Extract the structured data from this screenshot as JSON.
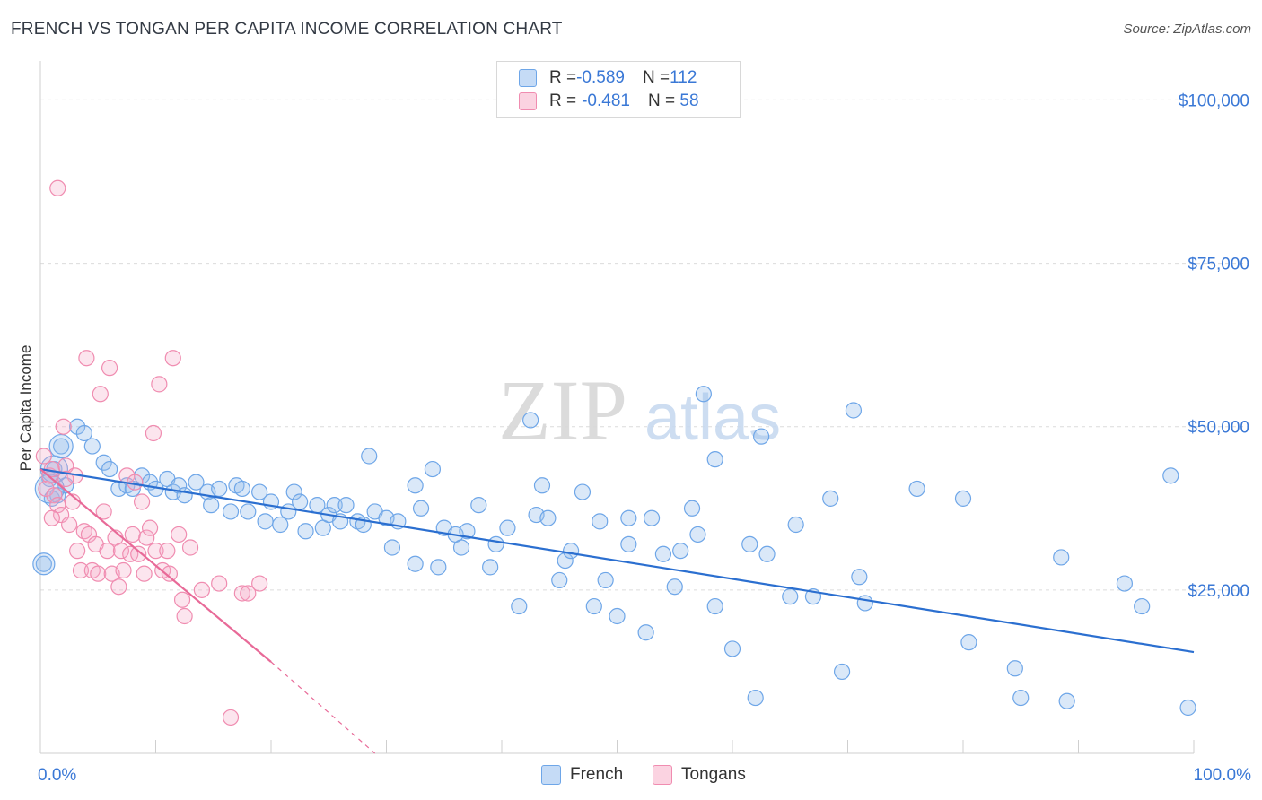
{
  "header": {
    "title": "FRENCH VS TONGAN PER CAPITA INCOME CORRELATION CHART",
    "source": "Source: ZipAtlas.com"
  },
  "watermark": {
    "zip": "ZIP",
    "atlas": "atlas"
  },
  "stats_legend": [
    {
      "r_label": "R = ",
      "r_value": "-0.589",
      "n_label": "N = ",
      "n_value": "112",
      "color": "#6ea6e8"
    },
    {
      "r_label": "R = ",
      "r_value": "-0.481",
      "n_label": "N = ",
      "n_value": " 58",
      "color": "#f08cb0"
    }
  ],
  "bottom_legend": [
    {
      "label": "French",
      "color": "#6ea6e8"
    },
    {
      "label": "Tongans",
      "color": "#f08cb0"
    }
  ],
  "chart_data": {
    "type": "scatter",
    "title": "FRENCH VS TONGAN PER CAPITA INCOME CORRELATION CHART",
    "xlabel": "",
    "ylabel": "Per Capita Income",
    "xlim": [
      0,
      100
    ],
    "ylim": [
      0,
      105000
    ],
    "x_tick_labels": [
      "0.0%",
      "100.0%"
    ],
    "y_ticks": [
      25000,
      50000,
      75000,
      100000
    ],
    "y_tick_labels": [
      "$25,000",
      "$50,000",
      "$75,000",
      "$100,000"
    ],
    "grid": true,
    "legend_position": "top-center",
    "series": [
      {
        "name": "French",
        "color": "#6ea6e8",
        "trend_color": "#2b6fd0",
        "trend": {
          "x": [
            0,
            100
          ],
          "y": [
            43500,
            15500
          ]
        },
        "points": [
          [
            0.3,
            29000
          ],
          [
            0.8,
            42000
          ],
          [
            1.0,
            39000
          ],
          [
            1.2,
            43500
          ],
          [
            1.5,
            39500
          ],
          [
            1.8,
            47000
          ],
          [
            2.2,
            41000
          ],
          [
            3.2,
            50000
          ],
          [
            3.8,
            49000
          ],
          [
            4.5,
            47000
          ],
          [
            5.5,
            44500
          ],
          [
            6.0,
            43500
          ],
          [
            6.8,
            40500
          ],
          [
            7.5,
            41000
          ],
          [
            8.0,
            40500
          ],
          [
            8.8,
            42500
          ],
          [
            9.5,
            41500
          ],
          [
            10.0,
            40500
          ],
          [
            11.0,
            42000
          ],
          [
            11.5,
            40000
          ],
          [
            12.0,
            41000
          ],
          [
            12.5,
            39500
          ],
          [
            13.5,
            41500
          ],
          [
            14.5,
            40000
          ],
          [
            14.8,
            38000
          ],
          [
            15.5,
            40500
          ],
          [
            16.5,
            37000
          ],
          [
            17.0,
            41000
          ],
          [
            17.5,
            40500
          ],
          [
            18.0,
            37000
          ],
          [
            19.0,
            40000
          ],
          [
            19.5,
            35500
          ],
          [
            20.0,
            38500
          ],
          [
            20.8,
            35000
          ],
          [
            21.5,
            37000
          ],
          [
            22.0,
            40000
          ],
          [
            22.5,
            38500
          ],
          [
            23.0,
            34000
          ],
          [
            24.0,
            38000
          ],
          [
            24.5,
            34500
          ],
          [
            25.0,
            36500
          ],
          [
            25.5,
            38000
          ],
          [
            26.0,
            35500
          ],
          [
            26.5,
            38000
          ],
          [
            27.5,
            35500
          ],
          [
            28.0,
            35000
          ],
          [
            28.5,
            45500
          ],
          [
            29.0,
            37000
          ],
          [
            30.0,
            36000
          ],
          [
            30.5,
            31500
          ],
          [
            31.0,
            35500
          ],
          [
            32.5,
            29000
          ],
          [
            32.5,
            41000
          ],
          [
            33.0,
            37500
          ],
          [
            34.0,
            43500
          ],
          [
            34.5,
            28500
          ],
          [
            35.0,
            34500
          ],
          [
            36.0,
            33500
          ],
          [
            36.5,
            31500
          ],
          [
            37.0,
            34000
          ],
          [
            38.0,
            38000
          ],
          [
            39.0,
            28500
          ],
          [
            39.5,
            32000
          ],
          [
            40.5,
            34500
          ],
          [
            41.5,
            22500
          ],
          [
            42.5,
            51000
          ],
          [
            43.0,
            36500
          ],
          [
            43.5,
            41000
          ],
          [
            44.0,
            36000
          ],
          [
            45.0,
            26500
          ],
          [
            45.5,
            29500
          ],
          [
            46.0,
            31000
          ],
          [
            47.0,
            40000
          ],
          [
            48.0,
            22500
          ],
          [
            48.5,
            35500
          ],
          [
            49.0,
            26500
          ],
          [
            50.0,
            21000
          ],
          [
            51.0,
            36000
          ],
          [
            51.0,
            32000
          ],
          [
            52.5,
            18500
          ],
          [
            53.0,
            36000
          ],
          [
            54.0,
            30500
          ],
          [
            55.0,
            25500
          ],
          [
            55.5,
            31000
          ],
          [
            56.5,
            37500
          ],
          [
            57.0,
            33500
          ],
          [
            57.5,
            55000
          ],
          [
            58.5,
            22500
          ],
          [
            58.5,
            45000
          ],
          [
            60.0,
            16000
          ],
          [
            61.5,
            32000
          ],
          [
            62.0,
            8500
          ],
          [
            62.5,
            48500
          ],
          [
            63.0,
            30500
          ],
          [
            65.0,
            24000
          ],
          [
            65.5,
            35000
          ],
          [
            67.0,
            24000
          ],
          [
            68.5,
            39000
          ],
          [
            69.5,
            12500
          ],
          [
            70.5,
            52500
          ],
          [
            71.0,
            27000
          ],
          [
            71.5,
            23000
          ],
          [
            76.0,
            40500
          ],
          [
            80.0,
            39000
          ],
          [
            80.5,
            17000
          ],
          [
            84.5,
            13000
          ],
          [
            85.0,
            8500
          ],
          [
            88.5,
            30000
          ],
          [
            89.0,
            8000
          ],
          [
            94.0,
            26000
          ],
          [
            95.5,
            22500
          ],
          [
            98.0,
            42500
          ],
          [
            99.5,
            7000
          ]
        ]
      },
      {
        "name": "Tongans",
        "color": "#f08cb0",
        "trend_color": "#e86a98",
        "trend": {
          "x": [
            0,
            20
          ],
          "y": [
            43500,
            14000
          ]
        },
        "trend_dashed": {
          "x": [
            20,
            29
          ],
          "y": [
            14000,
            0
          ]
        },
        "points": [
          [
            0.3,
            45500
          ],
          [
            0.5,
            40500
          ],
          [
            0.8,
            42500
          ],
          [
            1.0,
            43500
          ],
          [
            1.2,
            39500
          ],
          [
            1.5,
            38000
          ],
          [
            1.5,
            86500
          ],
          [
            1.8,
            36500
          ],
          [
            2.0,
            50000
          ],
          [
            2.2,
            44000
          ],
          [
            2.5,
            35000
          ],
          [
            2.8,
            38500
          ],
          [
            3.0,
            42500
          ],
          [
            3.2,
            31000
          ],
          [
            3.5,
            28000
          ],
          [
            3.8,
            34000
          ],
          [
            4.0,
            60500
          ],
          [
            4.2,
            33500
          ],
          [
            4.5,
            28000
          ],
          [
            4.8,
            32000
          ],
          [
            5.0,
            27500
          ],
          [
            5.2,
            55000
          ],
          [
            5.5,
            37000
          ],
          [
            5.8,
            31000
          ],
          [
            6.0,
            59000
          ],
          [
            6.2,
            27500
          ],
          [
            6.5,
            33000
          ],
          [
            6.8,
            25500
          ],
          [
            7.0,
            31000
          ],
          [
            7.2,
            28000
          ],
          [
            7.5,
            42500
          ],
          [
            7.8,
            30500
          ],
          [
            8.0,
            33500
          ],
          [
            8.2,
            41500
          ],
          [
            8.5,
            30500
          ],
          [
            8.8,
            38500
          ],
          [
            9.0,
            27500
          ],
          [
            9.2,
            33000
          ],
          [
            9.5,
            34500
          ],
          [
            9.8,
            49000
          ],
          [
            10.0,
            31000
          ],
          [
            10.3,
            56500
          ],
          [
            10.6,
            28000
          ],
          [
            11.0,
            31000
          ],
          [
            11.2,
            27500
          ],
          [
            11.5,
            60500
          ],
          [
            12.0,
            33500
          ],
          [
            12.3,
            23500
          ],
          [
            12.5,
            21000
          ],
          [
            13.0,
            31500
          ],
          [
            14.0,
            25000
          ],
          [
            15.5,
            26000
          ],
          [
            16.5,
            5500
          ],
          [
            17.5,
            24500
          ],
          [
            18.0,
            24500
          ],
          [
            19.0,
            26000
          ],
          [
            1.0,
            36000
          ],
          [
            2.2,
            42000
          ]
        ]
      }
    ]
  }
}
